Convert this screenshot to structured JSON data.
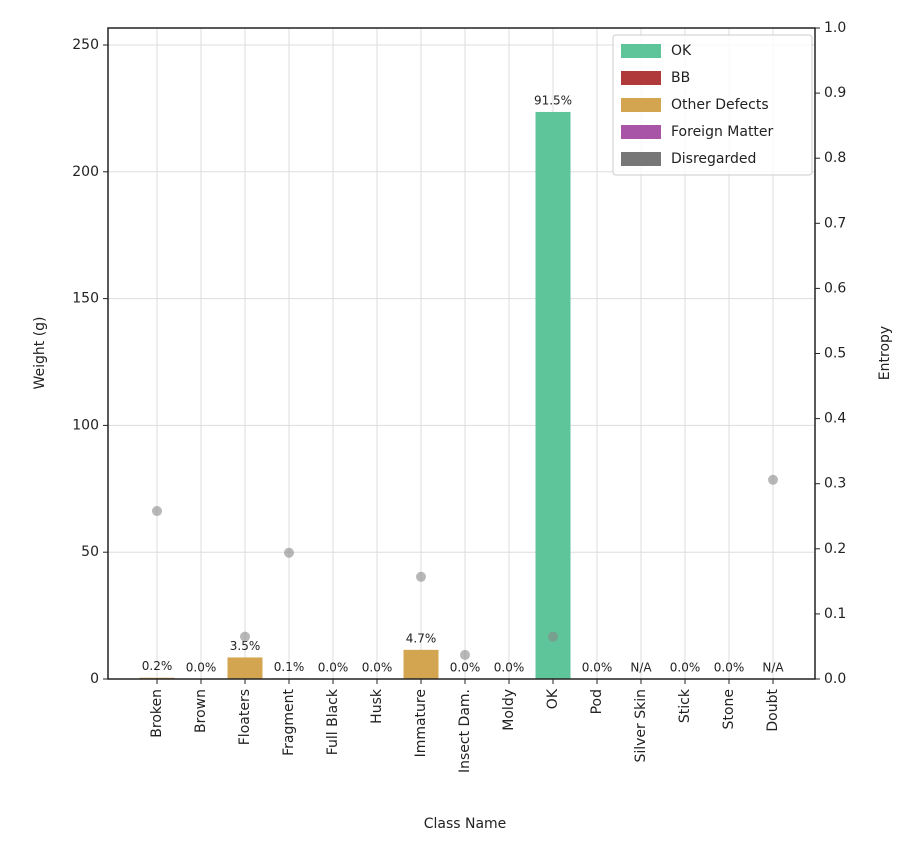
{
  "chart_data": {
    "type": "bar",
    "x_label": "Class Name",
    "y_label": "Weight (g)",
    "y2_label": "Entropy",
    "categories": [
      "Broken",
      "Brown",
      "Floaters",
      "Fragment",
      "Full Black",
      "Husk",
      "Immature",
      "Insect Dam.",
      "Moldy",
      "OK",
      "Pod",
      "Silver Skin",
      "Stick",
      "Stone",
      "Doubt"
    ],
    "values": [
      0.5,
      0,
      8.5,
      0.25,
      0,
      0,
      11.5,
      0,
      0,
      223.6,
      0,
      0,
      0,
      0,
      0
    ],
    "colors": [
      "#d4a550",
      "#d4a550",
      "#d4a550",
      "#d4a550",
      "#b03a3a",
      "#d4a550",
      "#d4a550",
      "#d4a550",
      "#d4a550",
      "#5ec49a",
      "#a855a8",
      "#d4a550",
      "#a855a8",
      "#a855a8",
      "#777777"
    ],
    "percent_labels": [
      "0.2%",
      "0.0%",
      "3.5%",
      "0.1%",
      "0.0%",
      "0.0%",
      "4.7%",
      "0.0%",
      "0.0%",
      "91.5%",
      "0.0%",
      "N/A",
      "0.0%",
      "0.0%",
      "N/A"
    ],
    "entropy": {
      "color": "#888888",
      "axis": "y2",
      "values": [
        0.258,
        null,
        0.065,
        0.194,
        null,
        null,
        0.157,
        0.037,
        null,
        0.065,
        null,
        null,
        null,
        null,
        0.306
      ]
    },
    "legend_position": "upper right",
    "legend": [
      {
        "name": "OK",
        "color": "#5ec49a"
      },
      {
        "name": "BB",
        "color": "#b03a3a"
      },
      {
        "name": "Other Defects",
        "color": "#d4a550"
      },
      {
        "name": "Foreign Matter",
        "color": "#a855a8"
      },
      {
        "name": "Disregarded",
        "color": "#777777"
      }
    ],
    "ylim": [
      0,
      256.7
    ],
    "yticks": [
      0,
      50,
      100,
      150,
      200,
      250
    ],
    "y2lim": [
      0,
      1
    ],
    "y2ticks": [
      {
        "value": 0,
        "label": "0.0"
      },
      0.1,
      0.2,
      0.3,
      0.4,
      0.5,
      0.6,
      0.7,
      0.8,
      0.9,
      {
        "value": 1,
        "label": "1.0"
      }
    ],
    "grid": true
  }
}
